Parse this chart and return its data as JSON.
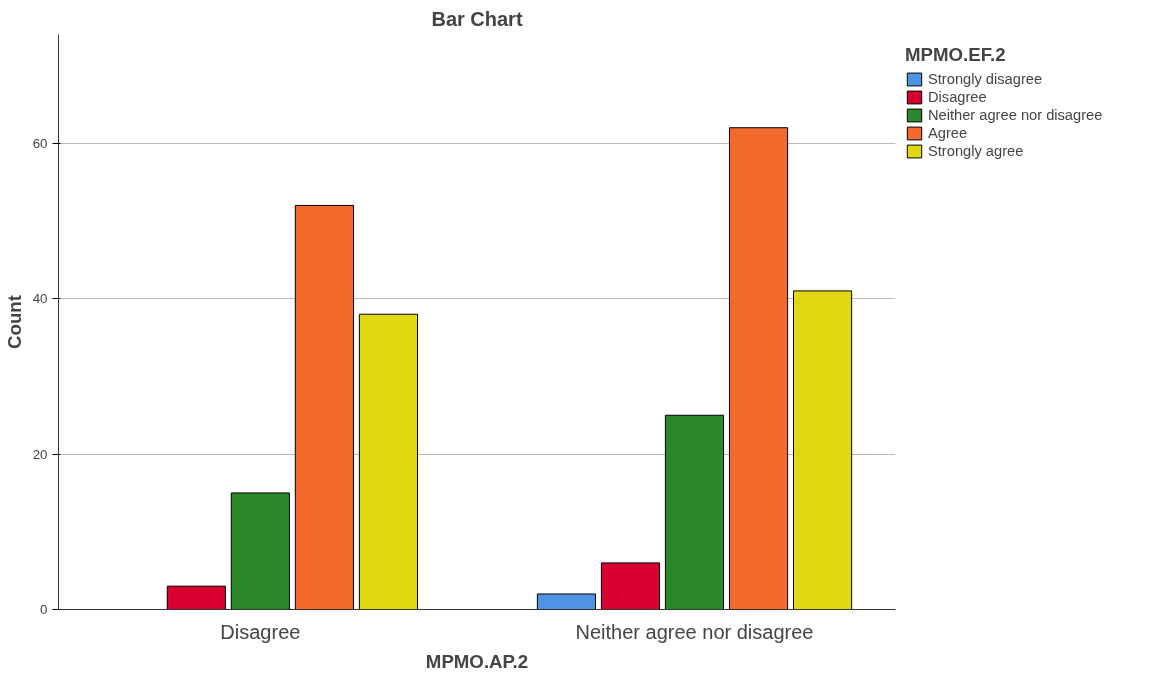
{
  "chart_data": {
    "type": "bar",
    "title": "Bar Chart",
    "xlabel": "MPMO.AP.2",
    "ylabel": "Count",
    "legend_title": "MPMO.EF.2",
    "categories": [
      "Disagree",
      "Neither agree nor disagree"
    ],
    "series": [
      {
        "name": "Strongly disagree",
        "color": "#4f93e3",
        "values": [
          null,
          2
        ]
      },
      {
        "name": "Disagree",
        "color": "#d7002e",
        "values": [
          3,
          6
        ]
      },
      {
        "name": "Neither agree nor disagree",
        "color": "#2a882a",
        "values": [
          15,
          25
        ]
      },
      {
        "name": "Agree",
        "color": "#f26a2c",
        "values": [
          52,
          62
        ]
      },
      {
        "name": "Strongly agree",
        "color": "#e2d811",
        "values": [
          38,
          41
        ]
      }
    ],
    "ylim": [
      0,
      74
    ],
    "yticks": [
      0,
      20,
      40,
      60
    ],
    "grid": "y",
    "legend": "top right"
  }
}
